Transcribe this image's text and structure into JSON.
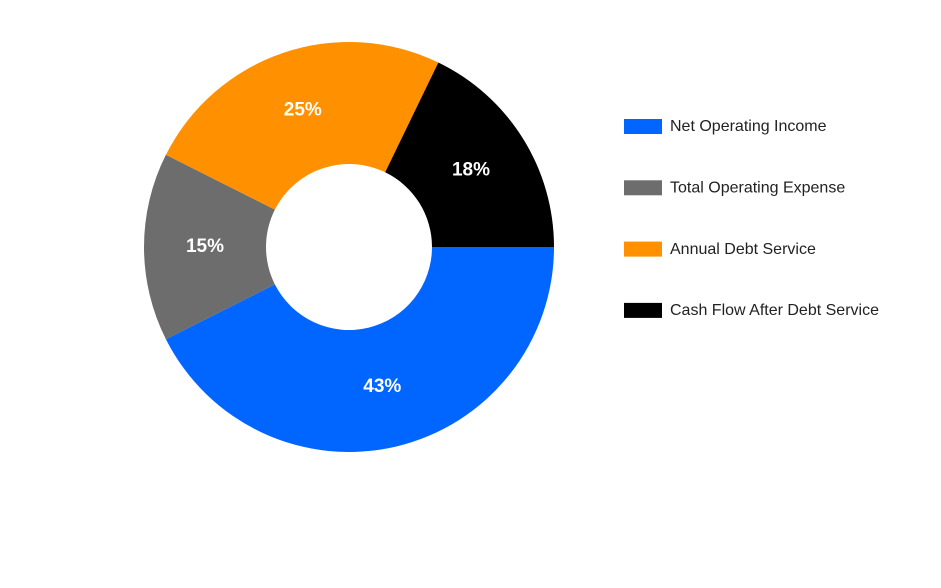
{
  "chart_data": {
    "type": "donut",
    "categories": [
      "Net Operating Income",
      "Total Operating Expense",
      "Annual Debt Service",
      "Cash Flow After Debt Service"
    ],
    "values": [
      43,
      15,
      25,
      18
    ],
    "value_labels": [
      "43%",
      "15%",
      "25%",
      "18%"
    ],
    "colors": [
      "#0066ff",
      "#6d6d6d",
      "#ff9100",
      "#000000"
    ],
    "legend": "right"
  }
}
